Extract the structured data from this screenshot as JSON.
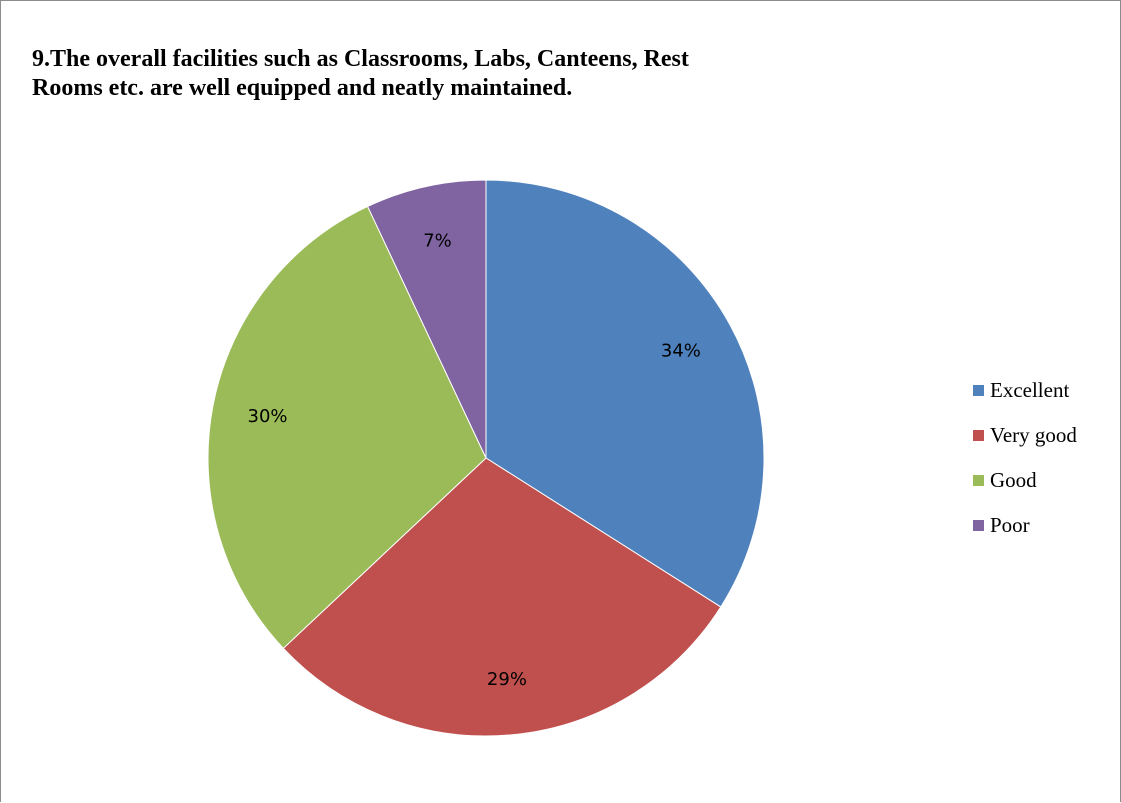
{
  "chart_data": {
    "type": "pie",
    "title_lines": [
      "9.The overall facilities such as Classrooms, Labs, Canteens, Rest",
      "Rooms etc. are well equipped and neatly maintained."
    ],
    "categories": [
      "Excellent",
      "Very good",
      "Good",
      "Poor"
    ],
    "values": [
      34,
      29,
      30,
      7
    ],
    "data_labels": [
      "34%",
      "29%",
      "30%",
      "7%"
    ],
    "colors": [
      "#4f81bd",
      "#c0504d",
      "#9bbb59",
      "#8064a2"
    ],
    "start_angle": "12 o'clock, clockwise",
    "legend_position": "right"
  }
}
